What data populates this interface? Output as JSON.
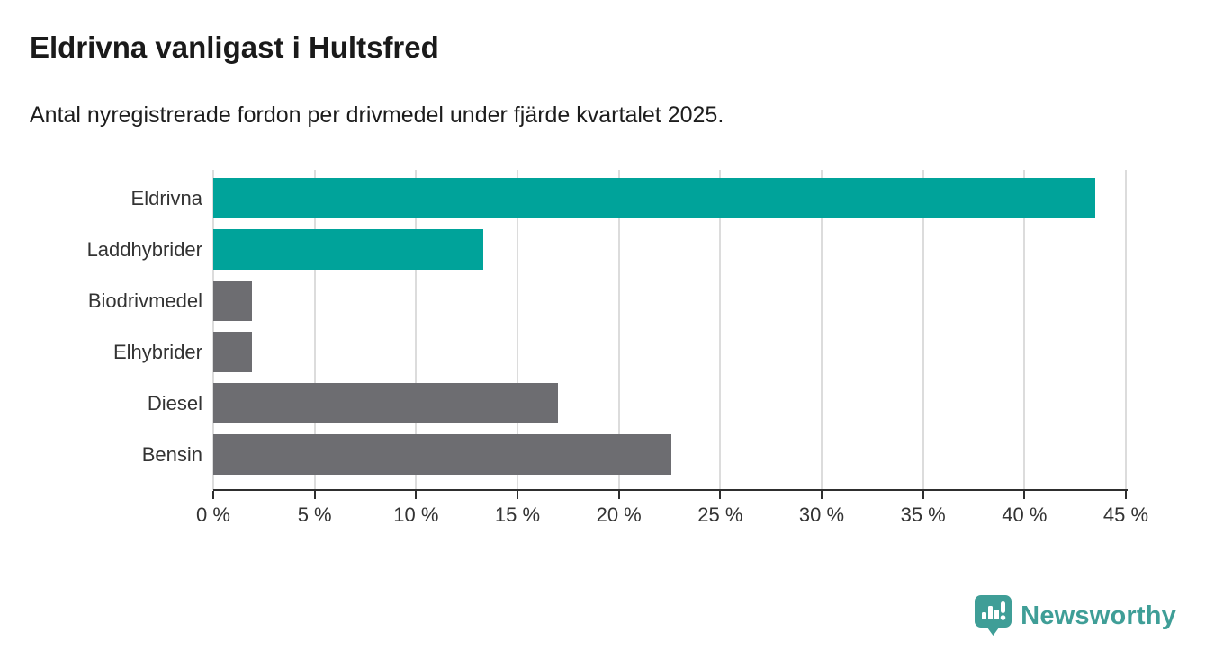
{
  "title": "Eldrivna vanligast i Hultsfred",
  "subtitle": "Antal nyregistrerade fordon per drivmedel under fjärde kvartalet 2025.",
  "chart_data": {
    "type": "bar",
    "orientation": "horizontal",
    "title": "Eldrivna vanligast i Hultsfred",
    "subtitle": "Antal nyregistrerade fordon per drivmedel under fjärde kvartalet 2025.",
    "categories": [
      "Eldrivna",
      "Laddhybrider",
      "Biodrivmedel",
      "Elhybrider",
      "Diesel",
      "Bensin"
    ],
    "values": [
      43.5,
      13.3,
      1.9,
      1.9,
      17.0,
      22.6
    ],
    "unit": "%",
    "bar_colors": [
      "#00a39a",
      "#00a39a",
      "#6d6d71",
      "#6d6d71",
      "#6d6d71",
      "#6d6d71"
    ],
    "xlim": [
      0,
      45
    ],
    "xtick_values": [
      0,
      5,
      10,
      15,
      20,
      25,
      30,
      35,
      40,
      45
    ],
    "xtick_labels": [
      "0 %",
      "5 %",
      "10 %",
      "15 %",
      "20 %",
      "25 %",
      "30 %",
      "35 %",
      "40 %",
      "45 %"
    ],
    "grid": true,
    "legend": "none"
  },
  "colors": {
    "teal": "#00a39a",
    "gray": "#6d6d71",
    "axis": "#2e2e2e",
    "gridline": "#dcdcdc",
    "text": "#333333",
    "title": "#1a1a1a",
    "logo": "#3f9e97"
  },
  "branding": {
    "logo_text": "Newsworthy"
  }
}
